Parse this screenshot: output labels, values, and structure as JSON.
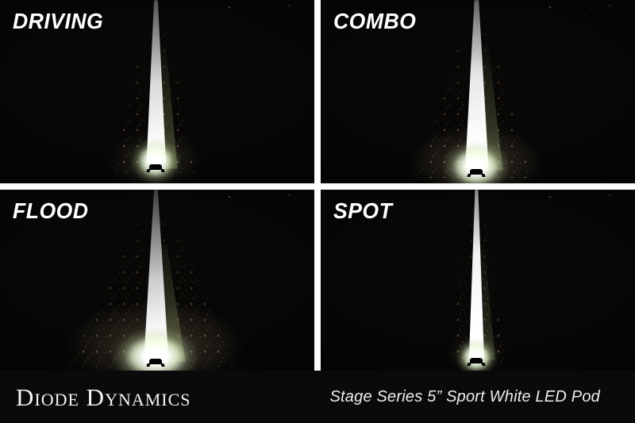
{
  "panels": [
    {
      "label": "DRIVING"
    },
    {
      "label": "COMBO"
    },
    {
      "label": "FLOOD"
    },
    {
      "label": "SPOT"
    }
  ],
  "footer": {
    "brand": "Diode Dynamics",
    "caption": "Stage Series 5” Sport White LED Pod"
  },
  "colors": {
    "background": "#050404",
    "divider": "#fdfdfd",
    "footer_background": "#0b0a0a",
    "label_text": "#ffffff",
    "beam": "#ffffff",
    "vegetation": "#c8ac74"
  }
}
